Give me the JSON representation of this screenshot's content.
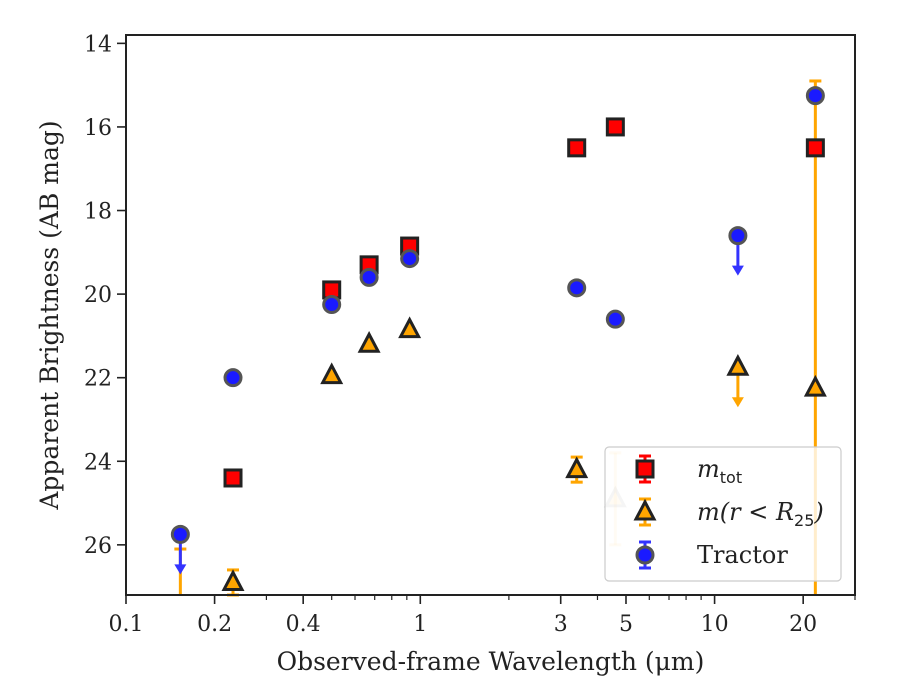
{
  "chart_data": {
    "type": "scatter",
    "title": "",
    "xlabel": "Observed-frame Wavelength (μm)",
    "ylabel": "Apparent Brightness (AB mag)",
    "xscale": "log",
    "yinverted": true,
    "xlim": [
      0.1,
      30
    ],
    "ylim": [
      27.2,
      13.8
    ],
    "xticks": [
      {
        "value": 0.1,
        "label": "0.1"
      },
      {
        "value": 0.2,
        "label": "0.2"
      },
      {
        "value": 0.4,
        "label": "0.4"
      },
      {
        "value": 1,
        "label": "1"
      },
      {
        "value": 3,
        "label": "3"
      },
      {
        "value": 5,
        "label": "5"
      },
      {
        "value": 10,
        "label": "10"
      },
      {
        "value": 20,
        "label": "20"
      }
    ],
    "yticks": [
      {
        "value": 14,
        "label": "14"
      },
      {
        "value": 16,
        "label": "16"
      },
      {
        "value": 18,
        "label": "18"
      },
      {
        "value": 20,
        "label": "20"
      },
      {
        "value": 22,
        "label": "22"
      },
      {
        "value": 24,
        "label": "24"
      },
      {
        "value": 26,
        "label": "26"
      }
    ],
    "grid": false,
    "legend_position": "lower-right",
    "series": [
      {
        "key": "m_tot",
        "name": "m",
        "name_sub": "tot",
        "marker": "square",
        "color": "#ff0000",
        "edge": "#222222",
        "errcolor": "#ff0000",
        "points": [
          {
            "x": 0.231,
            "y": 24.4
          },
          {
            "x": 0.5,
            "y": 19.9
          },
          {
            "x": 0.67,
            "y": 19.3
          },
          {
            "x": 0.92,
            "y": 18.85
          },
          {
            "x": 3.4,
            "y": 16.5
          },
          {
            "x": 4.6,
            "y": 16.0
          },
          {
            "x": 22,
            "y": 16.5
          }
        ]
      },
      {
        "key": "m_r25",
        "name": "m(r < R",
        "name_sub": "25",
        "name_end": ")",
        "marker": "triangle",
        "color": "#ffa500",
        "edge": "#222222",
        "errcolor": "#ffa500",
        "points": [
          {
            "x": 0.231,
            "y": 26.9,
            "err": [
              0.3,
              0.3
            ]
          },
          {
            "x": 0.5,
            "y": 21.95
          },
          {
            "x": 0.67,
            "y": 21.2
          },
          {
            "x": 0.92,
            "y": 20.85
          },
          {
            "x": 3.4,
            "y": 24.2,
            "err": [
              0.3,
              0.3
            ]
          },
          {
            "x": 4.6,
            "y": 24.9,
            "err": [
              1.1,
              1.1
            ],
            "faded": true
          },
          {
            "x": 12,
            "y": 21.75,
            "upper_limit": true
          },
          {
            "x": 22,
            "y": 22.25
          }
        ]
      },
      {
        "key": "tractor",
        "name": "Tractor",
        "marker": "circle",
        "color": "#1a1aff",
        "edge": "#555555",
        "errcolor": "#3333ff",
        "points": [
          {
            "x": 0.153,
            "y": 25.75,
            "upper_limit": true
          },
          {
            "x": 0.231,
            "y": 22.0
          },
          {
            "x": 0.5,
            "y": 20.25
          },
          {
            "x": 0.67,
            "y": 19.6
          },
          {
            "x": 0.92,
            "y": 19.15
          },
          {
            "x": 3.4,
            "y": 19.85
          },
          {
            "x": 4.6,
            "y": 20.6
          },
          {
            "x": 12,
            "y": 18.6,
            "upper_limit": true
          },
          {
            "x": 22,
            "y": 15.25
          }
        ]
      }
    ],
    "extra_errorbars": [
      {
        "x": 0.153,
        "y_from": 26.1,
        "y_to": 27.2,
        "color": "#ffa500"
      },
      {
        "x": 22,
        "y_from": 14.9,
        "y_to": 27.2,
        "color": "#ffa500"
      }
    ]
  }
}
